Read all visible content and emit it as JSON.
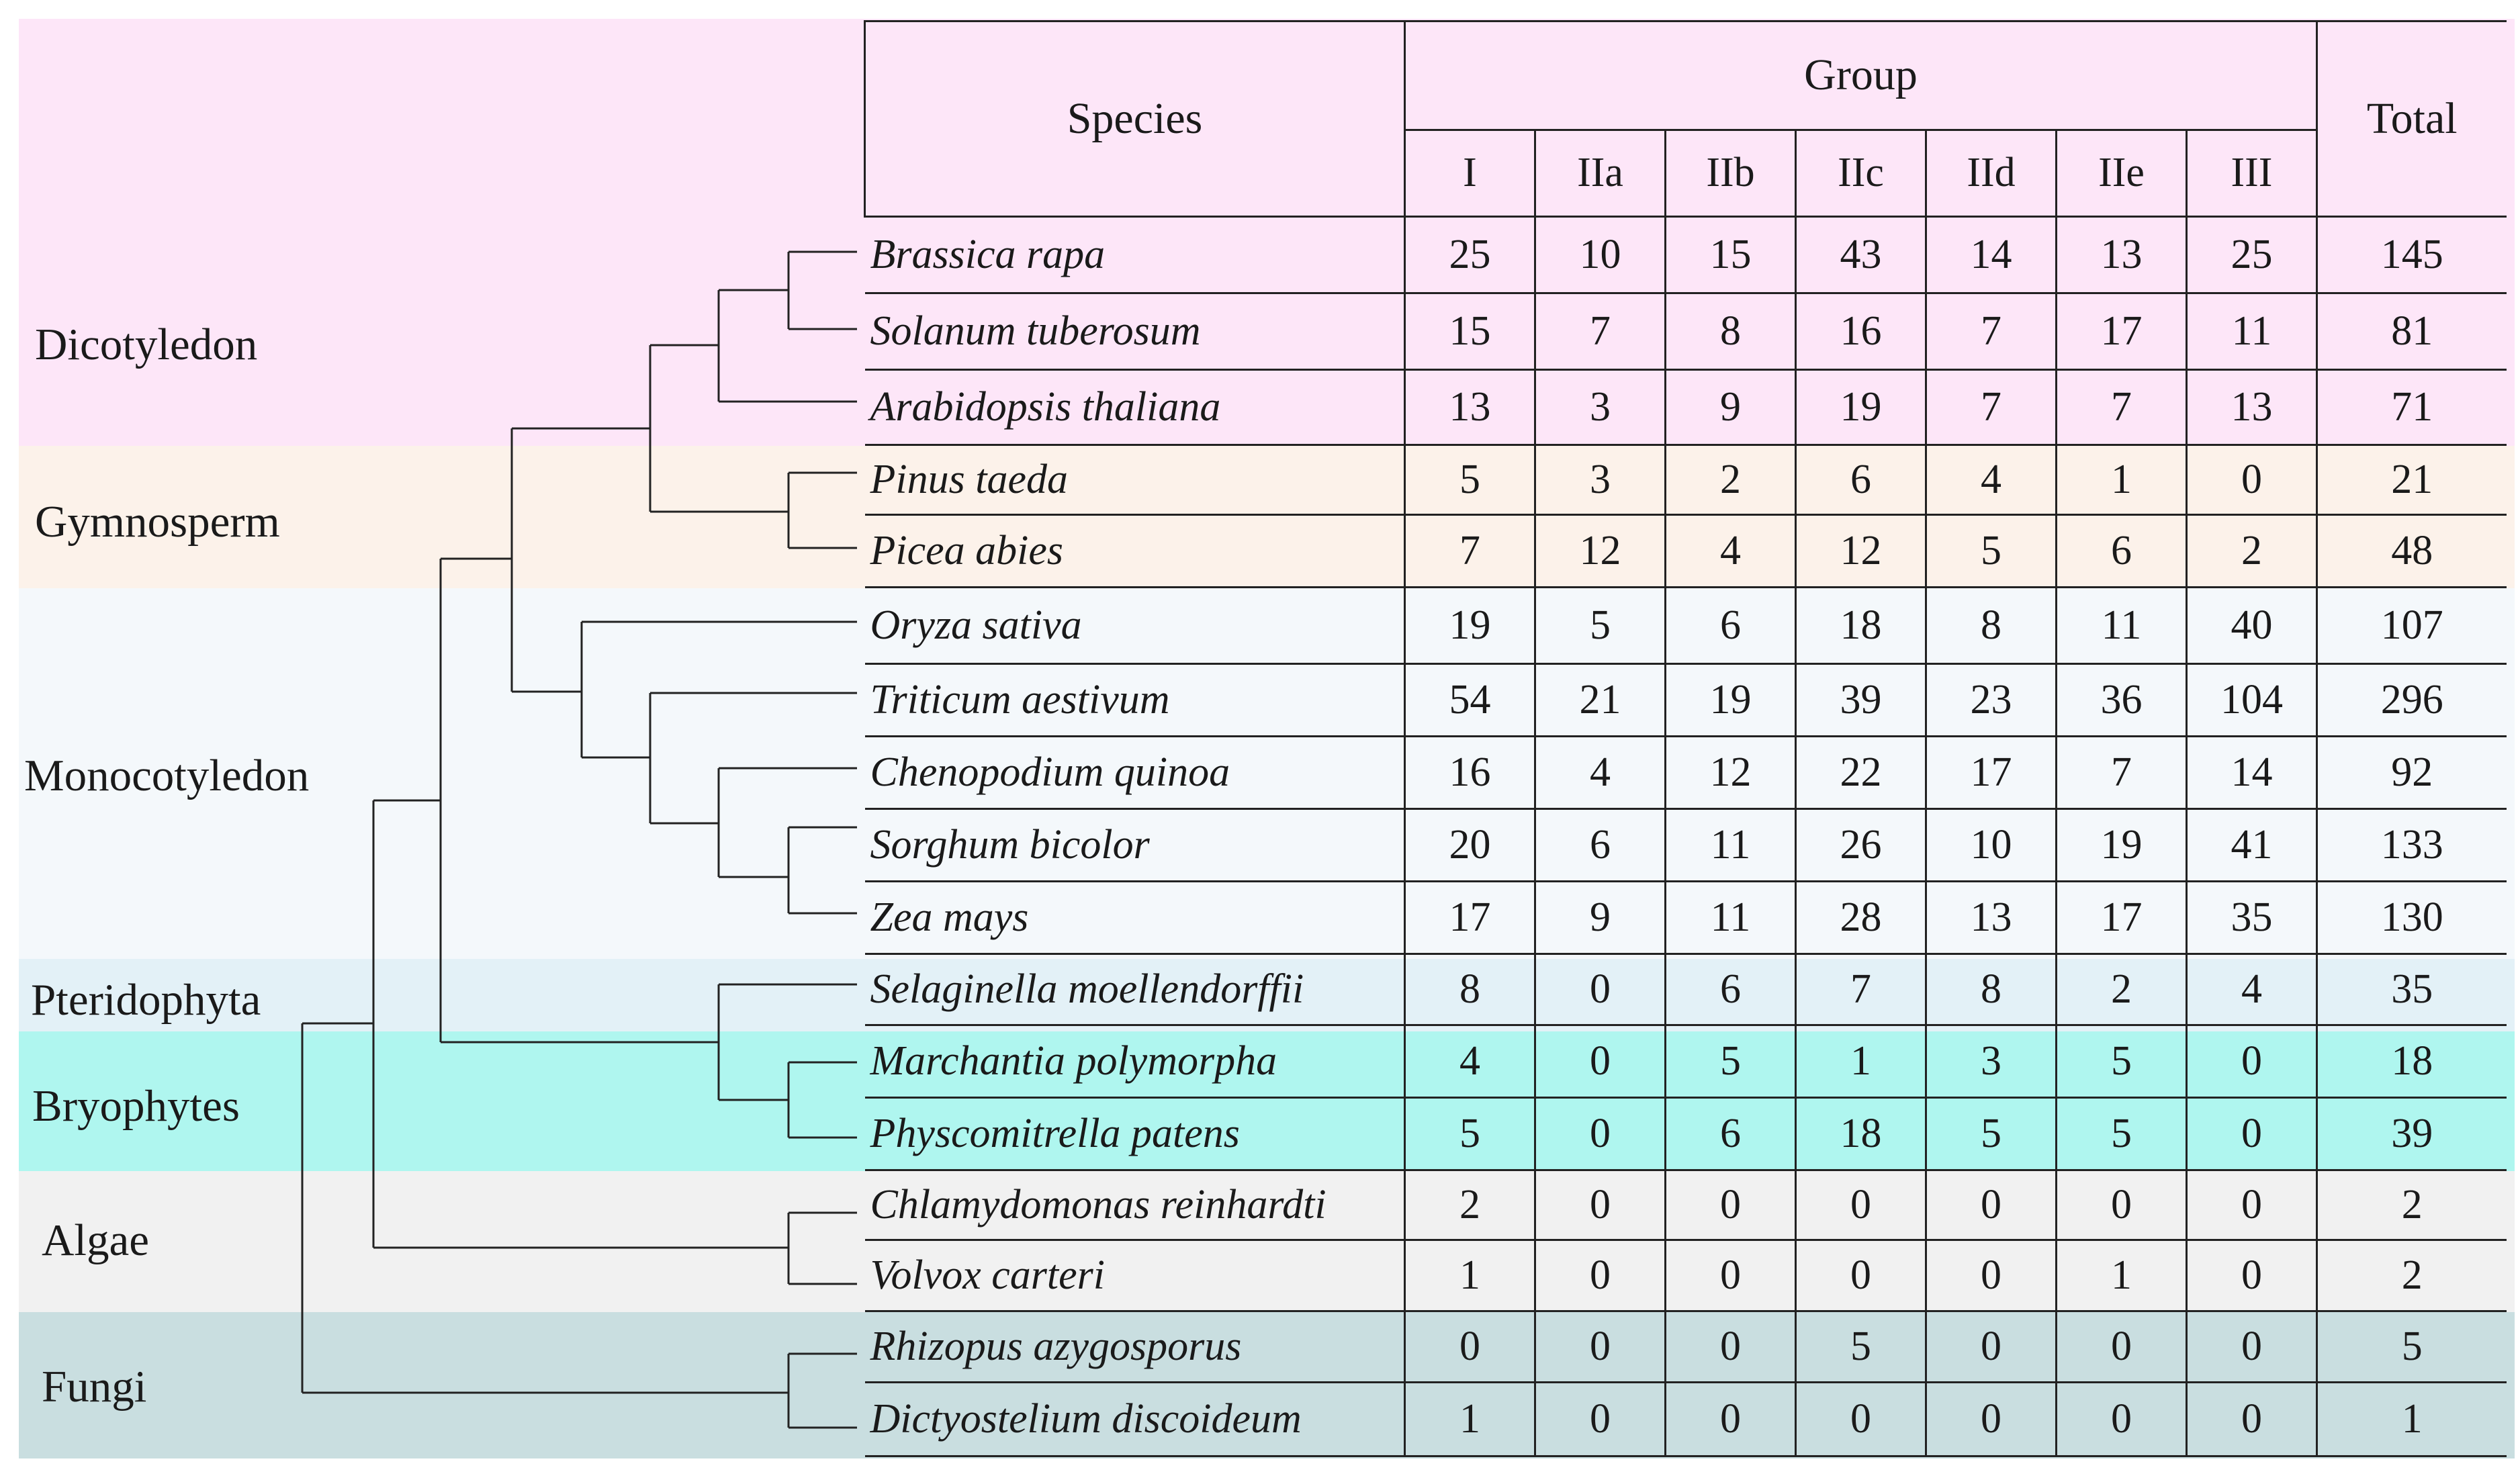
{
  "clades": [
    {
      "label": "Dicotyledon",
      "color": "#fde6f8"
    },
    {
      "label": "Gymnosperm",
      "color": "#fcf2ea"
    },
    {
      "label": "Monocotyledon",
      "color": "#f4f8fb"
    },
    {
      "label": "Pteridophyta",
      "color": "#e3f1f7"
    },
    {
      "label": "Bryophytes",
      "color": "#aff6ef"
    },
    {
      "label": "Algae",
      "color": "#f1f1f1"
    },
    {
      "label": "Fungi",
      "color": "#c9dee0"
    }
  ],
  "header": {
    "species": "Species",
    "group": "Group",
    "total": "Total",
    "subgroups": [
      "I",
      "IIa",
      "IIb",
      "IIc",
      "IId",
      "IIe",
      "III"
    ]
  },
  "rows": [
    {
      "species": "Brassica rapa",
      "values": [
        "25",
        "10",
        "15",
        "43",
        "14",
        "13",
        "25"
      ],
      "total": "145"
    },
    {
      "species": "Solanum tuberosum",
      "values": [
        "15",
        "7",
        "8",
        "16",
        "7",
        "17",
        "11"
      ],
      "total": "81"
    },
    {
      "species": "Arabidopsis thaliana",
      "values": [
        "13",
        "3",
        "9",
        "19",
        "7",
        "7",
        "13"
      ],
      "total": "71"
    },
    {
      "species": "Pinus taeda",
      "values": [
        "5",
        "3",
        "2",
        "6",
        "4",
        "1",
        "0"
      ],
      "total": "21"
    },
    {
      "species": "Picea abies",
      "values": [
        "7",
        "12",
        "4",
        "12",
        "5",
        "6",
        "2"
      ],
      "total": "48"
    },
    {
      "species": "Oryza sativa",
      "values": [
        "19",
        "5",
        "6",
        "18",
        "8",
        "11",
        "40"
      ],
      "total": "107"
    },
    {
      "species": "Triticum aestivum",
      "values": [
        "54",
        "21",
        "19",
        "39",
        "23",
        "36",
        "104"
      ],
      "total": "296"
    },
    {
      "species": "Chenopodium quinoa",
      "values": [
        "16",
        "4",
        "12",
        "22",
        "17",
        "7",
        "14"
      ],
      "total": "92"
    },
    {
      "species": "Sorghum bicolor",
      "values": [
        "20",
        "6",
        "11",
        "26",
        "10",
        "19",
        "41"
      ],
      "total": "133"
    },
    {
      "species": "Zea mays",
      "values": [
        "17",
        "9",
        "11",
        "28",
        "13",
        "17",
        "35"
      ],
      "total": "130"
    },
    {
      "species": "Selaginella moellendorffii",
      "values": [
        "8",
        "0",
        "6",
        "7",
        "8",
        "2",
        "4"
      ],
      "total": "35"
    },
    {
      "species": "Marchantia polymorpha",
      "values": [
        "4",
        "0",
        "5",
        "1",
        "3",
        "5",
        "0"
      ],
      "total": "18"
    },
    {
      "species": "Physcomitrella patens",
      "values": [
        "5",
        "0",
        "6",
        "18",
        "5",
        "5",
        "0"
      ],
      "total": "39"
    },
    {
      "species": "Chlamydomonas reinhardti",
      "values": [
        "2",
        "0",
        "0",
        "0",
        "0",
        "0",
        "0"
      ],
      "total": "2"
    },
    {
      "species": "Volvox carteri",
      "values": [
        "1",
        "0",
        "0",
        "0",
        "0",
        "1",
        "0"
      ],
      "total": "2"
    },
    {
      "species": "Rhizopus azygosporus",
      "values": [
        "0",
        "0",
        "0",
        "5",
        "0",
        "0",
        "0"
      ],
      "total": "5"
    },
    {
      "species": "Dictyostelium discoideum",
      "values": [
        "1",
        "0",
        "0",
        "0",
        "0",
        "0",
        "0"
      ],
      "total": "1"
    }
  ]
}
